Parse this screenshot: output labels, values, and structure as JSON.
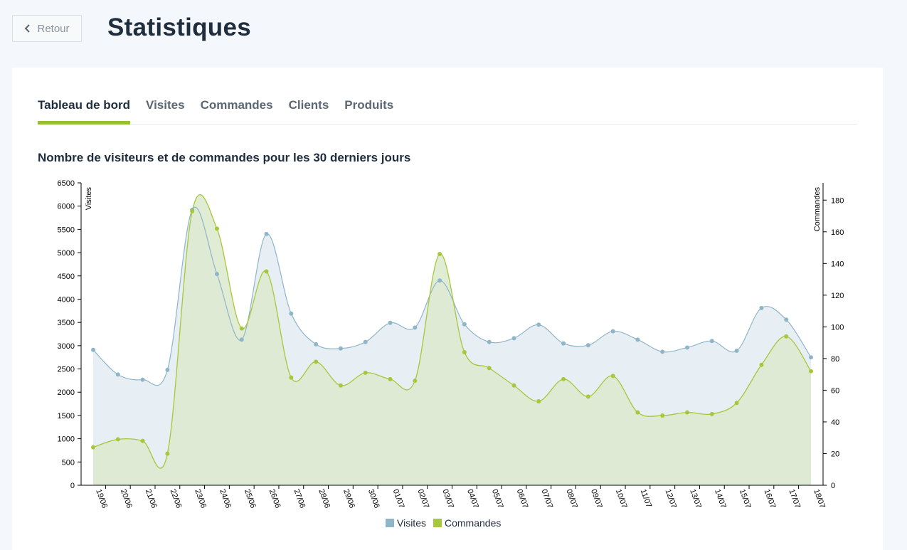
{
  "header": {
    "back_label": "Retour",
    "title": "Statistiques"
  },
  "tabs": [
    {
      "label": "Tableau de bord",
      "active": true
    },
    {
      "label": "Visites",
      "active": false
    },
    {
      "label": "Commandes",
      "active": false
    },
    {
      "label": "Clients",
      "active": false
    },
    {
      "label": "Produits",
      "active": false
    }
  ],
  "colors": {
    "accent": "#95c133",
    "visits_line": "#8fb5c9",
    "visits_fill": "#e8eff4",
    "orders_line": "#a6c83a",
    "orders_fill": "#dce9cd"
  },
  "chart_data": {
    "type": "area",
    "title": "Nombre de visiteurs et de commandes pour les 30 derniers jours",
    "ylabel": "Visites",
    "y2label": "Commandes",
    "ylim": [
      0,
      6500
    ],
    "y2lim": [
      0,
      190
    ],
    "yticks": [
      0,
      500,
      1000,
      1500,
      2000,
      2500,
      3000,
      3500,
      4000,
      4500,
      5000,
      5500,
      6000,
      6500
    ],
    "y2ticks": [
      0,
      20,
      40,
      60,
      80,
      100,
      120,
      140,
      160,
      180
    ],
    "categories": [
      "19/06",
      "20/06",
      "21/06",
      "22/06",
      "23/06",
      "24/06",
      "25/06",
      "26/06",
      "27/06",
      "28/06",
      "29/06",
      "30/06",
      "01/07",
      "02/07",
      "03/07",
      "04/07",
      "05/07",
      "06/07",
      "07/07",
      "08/07",
      "09/07",
      "10/07",
      "11/07",
      "12/07",
      "13/07",
      "14/07",
      "15/07",
      "16/07",
      "17/07",
      "18/07"
    ],
    "series": [
      {
        "name": "Visites",
        "axis": "left",
        "values": [
          2910,
          2380,
          2270,
          2480,
          5920,
          4540,
          3130,
          5400,
          3690,
          3030,
          2940,
          3080,
          3490,
          3390,
          4400,
          3460,
          3080,
          3160,
          3450,
          3050,
          3010,
          3310,
          3130,
          2870,
          2960,
          3100,
          2890,
          3810,
          3560,
          2750
        ]
      },
      {
        "name": "Commandes",
        "axis": "right",
        "values": [
          24,
          29,
          28,
          20,
          173,
          162,
          99,
          135,
          68,
          78,
          63,
          71,
          67,
          66,
          146,
          84,
          74,
          63,
          53,
          67,
          56,
          69,
          46,
          44,
          46,
          45,
          52,
          76,
          94,
          72
        ]
      }
    ],
    "legend_position": "bottom"
  }
}
